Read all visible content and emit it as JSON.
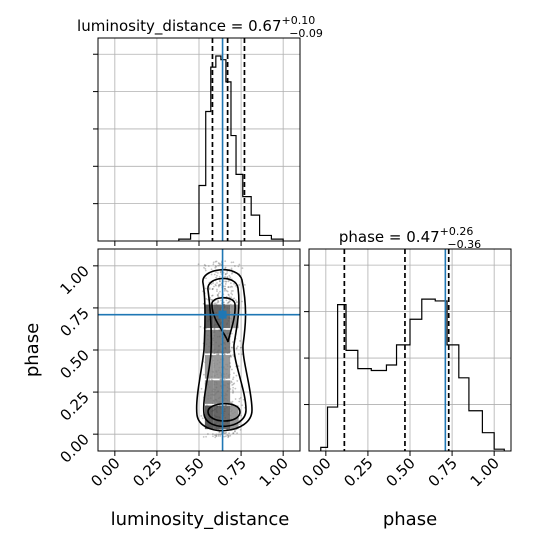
{
  "chart_data": [
    {
      "type": "histogram",
      "panel": "marginal",
      "parameter": "luminosity_distance",
      "title_main": "luminosity_distance = 0.67",
      "title_sup": "+0.10",
      "title_sub": "−0.09",
      "xlim": [
        -0.1,
        1.1
      ],
      "bins": [
        [
          0.38,
          0.45,
          0.01
        ],
        [
          0.45,
          0.5,
          0.04
        ],
        [
          0.5,
          0.54,
          0.3
        ],
        [
          0.54,
          0.57,
          0.7
        ],
        [
          0.57,
          0.6,
          0.94
        ],
        [
          0.6,
          0.63,
          1.0
        ],
        [
          0.63,
          0.66,
          0.98
        ],
        [
          0.66,
          0.69,
          0.86
        ],
        [
          0.69,
          0.72,
          0.57
        ],
        [
          0.72,
          0.76,
          0.36
        ],
        [
          0.76,
          0.81,
          0.24
        ],
        [
          0.81,
          0.86,
          0.14
        ],
        [
          0.86,
          0.93,
          0.03
        ],
        [
          0.93,
          1.0,
          0.01
        ]
      ],
      "quantiles": [
        0.58,
        0.67,
        0.77
      ],
      "truth": 0.64,
      "grid": true
    },
    {
      "type": "histogram",
      "panel": "marginal",
      "parameter": "phase",
      "title_main": "phase = 0.47",
      "title_sup": "+0.26",
      "title_sub": "−0.36",
      "xlim": [
        -0.1,
        1.1
      ],
      "xticks": [
        "0.00",
        "0.25",
        "0.50",
        "0.75",
        "1.00"
      ],
      "xlabel": "phase",
      "bins": [
        [
          -0.03,
          0.01,
          0.02
        ],
        [
          0.01,
          0.07,
          0.24
        ],
        [
          0.07,
          0.12,
          0.8
        ],
        [
          0.12,
          0.19,
          0.55
        ],
        [
          0.19,
          0.27,
          0.45
        ],
        [
          0.27,
          0.36,
          0.44
        ],
        [
          0.36,
          0.42,
          0.47
        ],
        [
          0.42,
          0.5,
          0.58
        ],
        [
          0.5,
          0.57,
          0.72
        ],
        [
          0.57,
          0.65,
          0.83
        ],
        [
          0.65,
          0.72,
          0.82
        ],
        [
          0.72,
          0.79,
          0.58
        ],
        [
          0.79,
          0.85,
          0.4
        ],
        [
          0.85,
          0.93,
          0.22
        ],
        [
          0.93,
          1.0,
          0.1
        ],
        [
          1.0,
          1.06,
          0.01
        ]
      ],
      "quantiles": [
        0.11,
        0.47,
        0.73
      ],
      "truth": 0.71,
      "grid": true
    },
    {
      "type": "2d-density",
      "panel": "joint",
      "x_parameter": "luminosity_distance",
      "y_parameter": "phase",
      "xlabel": "luminosity_distance",
      "ylabel": "phase",
      "xlim": [
        -0.1,
        1.1
      ],
      "ylim": [
        -0.1,
        1.1
      ],
      "xticks": [
        "0.00",
        "0.25",
        "0.50",
        "0.75",
        "1.00"
      ],
      "yticks": [
        "0.00",
        "0.25",
        "0.50",
        "0.75",
        "1.00"
      ],
      "density_cells": [
        [
          0.56,
          0.1,
          0.95
        ],
        [
          0.61,
          0.1,
          0.9
        ],
        [
          0.66,
          0.1,
          0.85
        ],
        [
          0.71,
          0.1,
          0.6
        ],
        [
          0.56,
          0.7,
          0.95
        ],
        [
          0.61,
          0.7,
          0.9
        ],
        [
          0.66,
          0.7,
          0.85
        ],
        [
          0.71,
          0.7,
          0.6
        ],
        [
          0.56,
          0.4,
          0.6
        ],
        [
          0.61,
          0.4,
          0.6
        ],
        [
          0.66,
          0.4,
          0.6
        ],
        [
          0.56,
          0.25,
          0.7
        ],
        [
          0.61,
          0.25,
          0.7
        ],
        [
          0.66,
          0.25,
          0.7
        ],
        [
          0.56,
          0.55,
          0.75
        ],
        [
          0.61,
          0.55,
          0.75
        ],
        [
          0.66,
          0.55,
          0.75
        ]
      ],
      "truth": [
        0.64,
        0.71
      ],
      "grid": true
    }
  ]
}
